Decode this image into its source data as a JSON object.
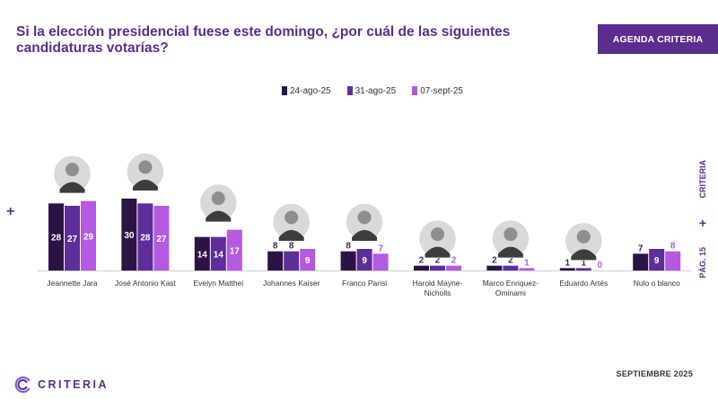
{
  "header": {
    "title_line1": "Si la elección presidencial fuese este domingo, ¿por cuál de las siguientes",
    "title_line2": "candidaturas votarías?",
    "badge": "AGENDA CRITERIA"
  },
  "side": {
    "page": "PÁG. 15",
    "brand": "CRITERIA"
  },
  "footer": {
    "date": "SEPTIEMBRE 2025",
    "logo": "CRITERIA"
  },
  "colors": {
    "accent": "#5b2d8e",
    "series": [
      "#2b1346",
      "#5d2d9a",
      "#b35ae0"
    ]
  },
  "chart_data": {
    "type": "bar",
    "categories": [
      [
        "Jeannette Jara"
      ],
      [
        "José Antonio Kast"
      ],
      [
        "Evelyn Matthei"
      ],
      [
        "Johannes Kaiser"
      ],
      [
        "Franco Parisi"
      ],
      [
        "Harold Mayne-",
        "Nicholls"
      ],
      [
        "Marco Enriquez-",
        "Ominami"
      ],
      [
        "Eduardo Artés"
      ],
      [
        "Nulo o blanco"
      ]
    ],
    "series": [
      {
        "name": "24-ago-25",
        "values": [
          28,
          30,
          14,
          8,
          8,
          2,
          2,
          1,
          7
        ]
      },
      {
        "name": "31-ago-25",
        "values": [
          27,
          28,
          14,
          8,
          9,
          2,
          2,
          1,
          9
        ]
      },
      {
        "name": "07-sept-25",
        "values": [
          29,
          27,
          17,
          9,
          7,
          2,
          1,
          0,
          8
        ]
      }
    ],
    "portraits": [
      true,
      true,
      true,
      true,
      true,
      true,
      true,
      true,
      false
    ],
    "ylim": [
      0,
      30
    ],
    "grid": false,
    "legend_position": "top"
  }
}
